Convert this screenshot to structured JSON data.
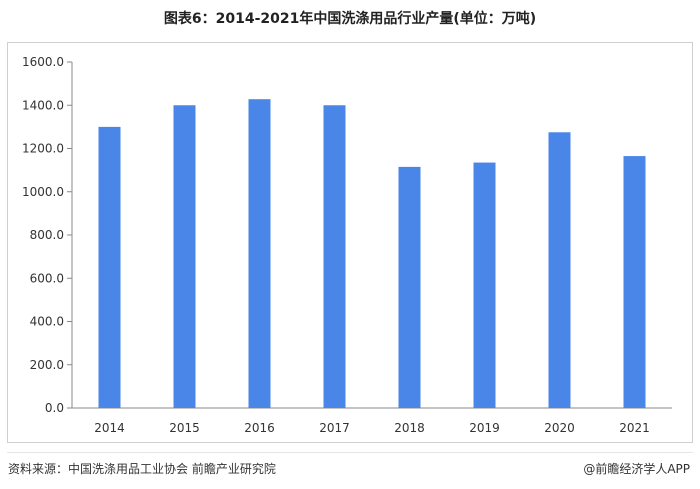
{
  "chart_title": "图表6：2014-2021年中国洗涤用品行业产量(单位：万吨)",
  "source_text": "资料来源：中国洗涤用品工业协会 前瞻产业研究院",
  "brand_text": "@前瞻经济学人APP",
  "bar_color": "#4a86e8",
  "chart_data": {
    "type": "bar",
    "title": "图表6：2014-2021年中国洗涤用品行业产量(单位：万吨)",
    "categories": [
      "2014",
      "2015",
      "2016",
      "2017",
      "2018",
      "2019",
      "2020",
      "2021"
    ],
    "values": [
      1300,
      1400,
      1428,
      1400,
      1115,
      1135,
      1275,
      1165
    ],
    "ylim": [
      0,
      1600
    ],
    "yticks": [
      "0.0",
      "200.0",
      "400.0",
      "600.0",
      "800.0",
      "1000.0",
      "1200.0",
      "1400.0",
      "1600.0"
    ],
    "grid": false,
    "legend": "none"
  }
}
